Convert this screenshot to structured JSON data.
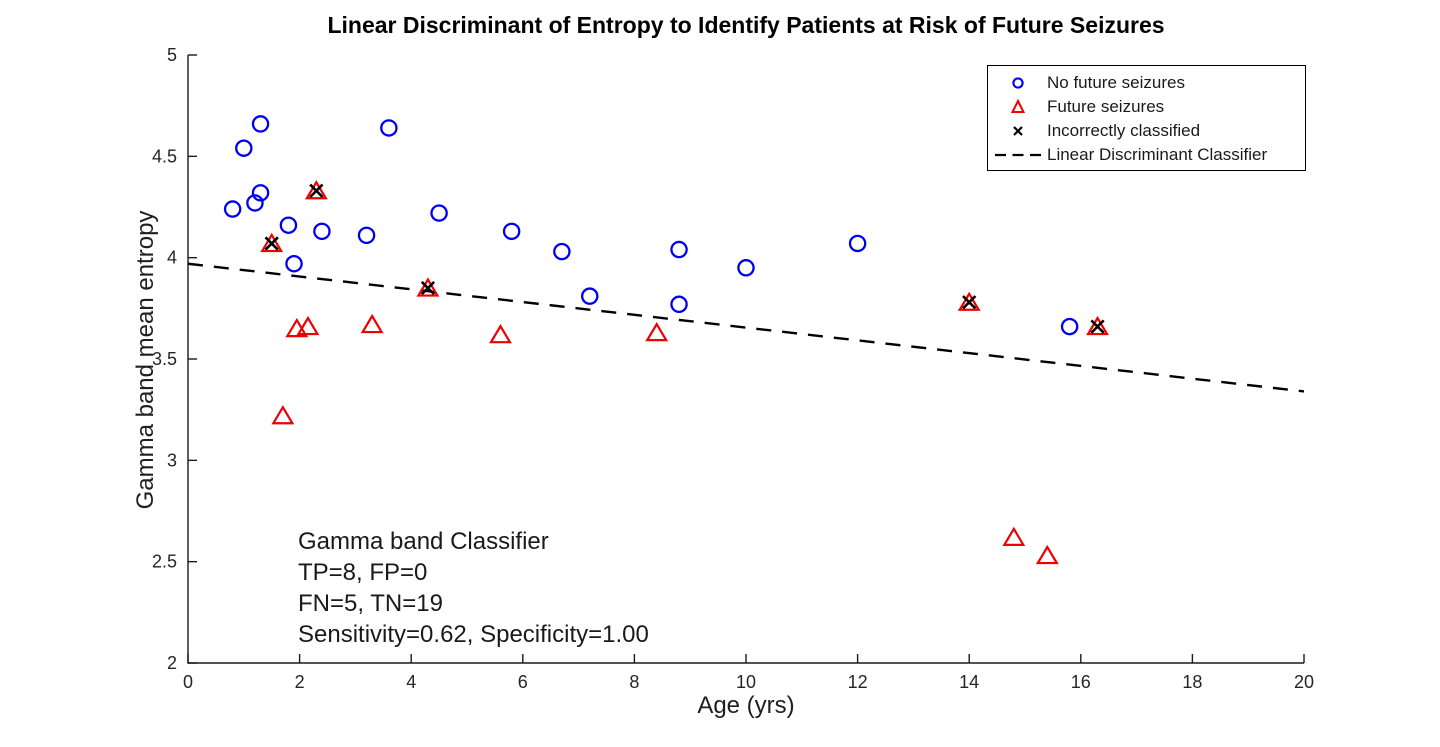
{
  "figure": {
    "title": "Linear Discriminant of Entropy to Identify Patients at Risk of Future Seizures"
  },
  "chart_data": {
    "type": "scatter",
    "title": "Linear Discriminant of Entropy to Identify Patients at Risk of Future Seizures",
    "xlabel": "Age (yrs)",
    "ylabel": "Gamma band mean entropy",
    "xlim": [
      0,
      20
    ],
    "ylim": [
      2,
      5
    ],
    "xticks": [
      0,
      2,
      4,
      6,
      8,
      10,
      12,
      14,
      16,
      18,
      20
    ],
    "xtick_labels": [
      "0",
      "2",
      "4",
      "6",
      "8",
      "10",
      "12",
      "14",
      "16",
      "18",
      "20"
    ],
    "yticks": [
      2,
      2.5,
      3,
      3.5,
      4,
      4.5,
      5
    ],
    "ytick_labels": [
      "2",
      "2.5",
      "3",
      "3.5",
      "4",
      "4.5",
      "5"
    ],
    "grid": false,
    "legend_position": "top-right-inside",
    "series": [
      {
        "name": "No future seizures",
        "marker": "circle",
        "color": "#0000F0",
        "points": [
          [
            0.8,
            4.24
          ],
          [
            1.0,
            4.54
          ],
          [
            1.2,
            4.27
          ],
          [
            1.3,
            4.32
          ],
          [
            1.3,
            4.66
          ],
          [
            1.8,
            4.16
          ],
          [
            1.9,
            3.97
          ],
          [
            2.4,
            4.13
          ],
          [
            3.2,
            4.11
          ],
          [
            3.6,
            4.64
          ],
          [
            4.5,
            4.22
          ],
          [
            5.8,
            4.13
          ],
          [
            6.7,
            4.03
          ],
          [
            7.2,
            3.81
          ],
          [
            8.8,
            4.04
          ],
          [
            8.8,
            3.77
          ],
          [
            10.0,
            3.95
          ],
          [
            12.0,
            4.07
          ],
          [
            15.8,
            3.66
          ]
        ]
      },
      {
        "name": "Future seizures",
        "marker": "triangle",
        "color": "#EE0000",
        "points": [
          [
            1.7,
            3.22
          ],
          [
            1.95,
            3.65
          ],
          [
            2.15,
            3.66
          ],
          [
            3.3,
            3.67
          ],
          [
            5.6,
            3.62
          ],
          [
            8.4,
            3.63
          ],
          [
            14.8,
            2.62
          ],
          [
            15.4,
            2.53
          ],
          [
            1.5,
            4.07
          ],
          [
            2.3,
            4.33
          ],
          [
            4.3,
            3.85
          ],
          [
            14.0,
            3.78
          ],
          [
            16.3,
            3.66
          ]
        ]
      },
      {
        "name": "Incorrectly classified",
        "marker": "x",
        "color": "#000000",
        "points": [
          [
            1.5,
            4.07
          ],
          [
            2.3,
            4.33
          ],
          [
            4.3,
            3.85
          ],
          [
            14.0,
            3.78
          ],
          [
            16.3,
            3.66
          ]
        ]
      }
    ],
    "classifier_line": {
      "name": "Linear Discriminant Classifier",
      "style": "dashed",
      "color": "#000000",
      "x": [
        0,
        20
      ],
      "y": [
        3.97,
        3.34
      ]
    }
  },
  "legend": {
    "items": [
      {
        "label": "No future seizures",
        "icon": "blue-circle-marker"
      },
      {
        "label": "Future seizures",
        "icon": "red-triangle-marker"
      },
      {
        "label": "Incorrectly classified",
        "icon": "black-x-marker"
      },
      {
        "label": "Linear Discriminant Classifier",
        "icon": "dashed-line"
      }
    ]
  },
  "annotation": {
    "lines": [
      "Gamma band Classifier",
      "TP=8, FP=0",
      "FN=5, TN=19",
      "Sensitivity=0.62, Specificity=1.00"
    ]
  },
  "colors": {
    "no_future_seizures": "#0000F0",
    "future_seizures": "#EE0000",
    "incorrect_x": "#000000",
    "classifier_line": "#000000",
    "axes": "#1a1a1a"
  }
}
